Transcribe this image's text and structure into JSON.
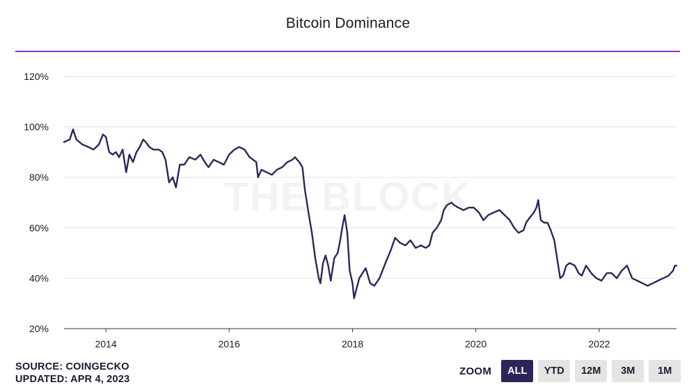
{
  "header": {
    "title": "Bitcoin Dominance"
  },
  "watermark": "THE BLOCK",
  "footer": {
    "source": "SOURCE: COINGECKO",
    "updated": "UPDATED: APR 4, 2023"
  },
  "zoom": {
    "label": "ZOOM",
    "buttons": [
      {
        "label": "ALL",
        "active": true
      },
      {
        "label": "YTD",
        "active": false
      },
      {
        "label": "12M",
        "active": false
      },
      {
        "label": "3M",
        "active": false
      },
      {
        "label": "1M",
        "active": false
      }
    ]
  },
  "colors": {
    "line": "#2d2559",
    "accent": "#8a2be2",
    "grid": "#e6e6e6",
    "active_button": "#2d2559"
  },
  "chart_data": {
    "type": "line",
    "title": "Bitcoin Dominance",
    "xlabel": "",
    "ylabel": "",
    "x_ticks": [
      "2014",
      "2016",
      "2018",
      "2020",
      "2022"
    ],
    "y_ticks": [
      "20%",
      "40%",
      "60%",
      "80%",
      "100%",
      "120%"
    ],
    "ylim": [
      20,
      120
    ],
    "xlim": [
      "2013-04-28",
      "2023-04-04"
    ],
    "grid": true,
    "legend": "none",
    "series": [
      {
        "points": [
          [
            "2013-04-28",
            94
          ],
          [
            "2013-06-01",
            95
          ],
          [
            "2013-06-20",
            99
          ],
          [
            "2013-07-10",
            95
          ],
          [
            "2013-08-15",
            93
          ],
          [
            "2013-09-20",
            92
          ],
          [
            "2013-10-20",
            91
          ],
          [
            "2013-11-20",
            93
          ],
          [
            "2013-12-15",
            97
          ],
          [
            "2014-01-01",
            96
          ],
          [
            "2014-01-20",
            90
          ],
          [
            "2014-02-10",
            89
          ],
          [
            "2014-03-01",
            90
          ],
          [
            "2014-03-20",
            88
          ],
          [
            "2014-04-10",
            91
          ],
          [
            "2014-05-01",
            82
          ],
          [
            "2014-05-20",
            89
          ],
          [
            "2014-06-10",
            86
          ],
          [
            "2014-07-01",
            90
          ],
          [
            "2014-07-20",
            92
          ],
          [
            "2014-08-10",
            95
          ],
          [
            "2014-08-25",
            94
          ],
          [
            "2014-09-15",
            92
          ],
          [
            "2014-10-10",
            91
          ],
          [
            "2014-11-10",
            91
          ],
          [
            "2014-12-01",
            90
          ],
          [
            "2014-12-20",
            87
          ],
          [
            "2015-01-10",
            78
          ],
          [
            "2015-02-01",
            80
          ],
          [
            "2015-02-20",
            76
          ],
          [
            "2015-03-15",
            85
          ],
          [
            "2015-04-10",
            85
          ],
          [
            "2015-05-10",
            88
          ],
          [
            "2015-06-15",
            87
          ],
          [
            "2015-07-15",
            89
          ],
          [
            "2015-08-10",
            86
          ],
          [
            "2015-09-01",
            84
          ],
          [
            "2015-10-01",
            87
          ],
          [
            "2015-11-01",
            86
          ],
          [
            "2015-12-01",
            85
          ],
          [
            "2016-01-01",
            89
          ],
          [
            "2016-02-01",
            91
          ],
          [
            "2016-03-01",
            92
          ],
          [
            "2016-04-01",
            91
          ],
          [
            "2016-05-01",
            88
          ],
          [
            "2016-06-10",
            86
          ],
          [
            "2016-06-20",
            80
          ],
          [
            "2016-07-10",
            83
          ],
          [
            "2016-08-10",
            82
          ],
          [
            "2016-09-10",
            81
          ],
          [
            "2016-10-10",
            83
          ],
          [
            "2016-11-10",
            84
          ],
          [
            "2016-12-10",
            86
          ],
          [
            "2017-01-10",
            87
          ],
          [
            "2017-01-25",
            88
          ],
          [
            "2017-02-20",
            86
          ],
          [
            "2017-03-10",
            84
          ],
          [
            "2017-03-25",
            75
          ],
          [
            "2017-04-15",
            66
          ],
          [
            "2017-05-05",
            58
          ],
          [
            "2017-05-25",
            48
          ],
          [
            "2017-06-15",
            40
          ],
          [
            "2017-06-25",
            38
          ],
          [
            "2017-07-10",
            46
          ],
          [
            "2017-07-25",
            49
          ],
          [
            "2017-08-10",
            45
          ],
          [
            "2017-08-25",
            39
          ],
          [
            "2017-09-15",
            48
          ],
          [
            "2017-10-05",
            50
          ],
          [
            "2017-10-20",
            55
          ],
          [
            "2017-11-01",
            60
          ],
          [
            "2017-11-15",
            65
          ],
          [
            "2017-12-01",
            58
          ],
          [
            "2017-12-15",
            43
          ],
          [
            "2018-01-01",
            38
          ],
          [
            "2018-01-10",
            32
          ],
          [
            "2018-01-25",
            36
          ],
          [
            "2018-02-10",
            40
          ],
          [
            "2018-03-01",
            42
          ],
          [
            "2018-03-20",
            44
          ],
          [
            "2018-04-15",
            38
          ],
          [
            "2018-05-10",
            37
          ],
          [
            "2018-06-10",
            40
          ],
          [
            "2018-07-15",
            46
          ],
          [
            "2018-08-15",
            51
          ],
          [
            "2018-09-10",
            56
          ],
          [
            "2018-10-10",
            54
          ],
          [
            "2018-11-10",
            53
          ],
          [
            "2018-12-10",
            55
          ],
          [
            "2019-01-10",
            52
          ],
          [
            "2019-02-10",
            53
          ],
          [
            "2019-03-10",
            52
          ],
          [
            "2019-04-01",
            53
          ],
          [
            "2019-04-20",
            58
          ],
          [
            "2019-05-15",
            60
          ],
          [
            "2019-06-10",
            63
          ],
          [
            "2019-06-25",
            67
          ],
          [
            "2019-07-15",
            69
          ],
          [
            "2019-08-10",
            70
          ],
          [
            "2019-08-25",
            69
          ],
          [
            "2019-09-20",
            68
          ],
          [
            "2019-10-20",
            67
          ],
          [
            "2019-11-20",
            68
          ],
          [
            "2019-12-20",
            68
          ],
          [
            "2020-01-20",
            66
          ],
          [
            "2020-02-15",
            63
          ],
          [
            "2020-03-15",
            65
          ],
          [
            "2020-04-15",
            66
          ],
          [
            "2020-05-20",
            67
          ],
          [
            "2020-06-20",
            65
          ],
          [
            "2020-07-20",
            63
          ],
          [
            "2020-08-15",
            60
          ],
          [
            "2020-09-10",
            58
          ],
          [
            "2020-10-10",
            59
          ],
          [
            "2020-10-25",
            62
          ],
          [
            "2020-11-15",
            64
          ],
          [
            "2020-12-10",
            66
          ],
          [
            "2020-12-25",
            68
          ],
          [
            "2021-01-05",
            71
          ],
          [
            "2021-01-20",
            63
          ],
          [
            "2021-02-10",
            62
          ],
          [
            "2021-03-01",
            62
          ],
          [
            "2021-03-20",
            59
          ],
          [
            "2021-04-10",
            55
          ],
          [
            "2021-05-01",
            46
          ],
          [
            "2021-05-15",
            40
          ],
          [
            "2021-06-01",
            41
          ],
          [
            "2021-06-20",
            45
          ],
          [
            "2021-07-10",
            46
          ],
          [
            "2021-08-10",
            45
          ],
          [
            "2021-09-01",
            42
          ],
          [
            "2021-09-20",
            41
          ],
          [
            "2021-10-15",
            45
          ],
          [
            "2021-11-15",
            42
          ],
          [
            "2021-12-15",
            40
          ],
          [
            "2022-01-15",
            39
          ],
          [
            "2022-02-15",
            42
          ],
          [
            "2022-03-15",
            42
          ],
          [
            "2022-04-15",
            40
          ],
          [
            "2022-05-15",
            43
          ],
          [
            "2022-06-15",
            45
          ],
          [
            "2022-07-15",
            40
          ],
          [
            "2022-08-15",
            39
          ],
          [
            "2022-09-15",
            38
          ],
          [
            "2022-10-15",
            37
          ],
          [
            "2022-11-15",
            38
          ],
          [
            "2022-12-15",
            39
          ],
          [
            "2023-01-15",
            40
          ],
          [
            "2023-02-15",
            41
          ],
          [
            "2023-03-15",
            43
          ],
          [
            "2023-03-25",
            45
          ],
          [
            "2023-04-04",
            45
          ]
        ]
      }
    ]
  }
}
